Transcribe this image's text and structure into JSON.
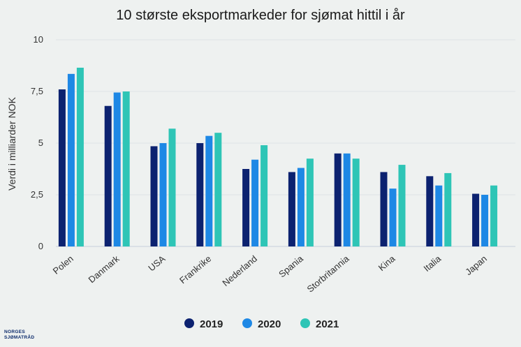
{
  "chart_data": {
    "type": "bar",
    "title": "10 største eksportmarkeder for sjømat hittil i år",
    "ylabel": "Verdi i milliarder NOK",
    "xlabel": "",
    "ylim": [
      0,
      10
    ],
    "yticks": [
      "0",
      "2,5",
      "5",
      "7,5",
      "10"
    ],
    "ytick_values": [
      0,
      2.5,
      5,
      7.5,
      10
    ],
    "grid": true,
    "legend_position": "bottom",
    "categories": [
      "Polen",
      "Danmark",
      "USA",
      "Frankrike",
      "Nederland",
      "Spania",
      "Storbritannia",
      "Kina",
      "Italia",
      "Japan"
    ],
    "series": [
      {
        "name": "2019",
        "color": "#0c2270",
        "values": [
          7.6,
          6.8,
          4.85,
          5.0,
          3.75,
          3.6,
          4.5,
          3.6,
          3.4,
          2.55
        ]
      },
      {
        "name": "2020",
        "color": "#1e88e5",
        "values": [
          8.35,
          7.45,
          5.0,
          5.35,
          4.2,
          3.8,
          4.5,
          2.8,
          2.95,
          2.5
        ]
      },
      {
        "name": "2021",
        "color": "#2ec5b6",
        "values": [
          8.65,
          7.5,
          5.7,
          5.5,
          4.9,
          4.25,
          4.25,
          3.95,
          3.55,
          2.95
        ]
      }
    ]
  },
  "logo": {
    "line1": "NORGES",
    "line2": "SJØMATRÅD"
  }
}
